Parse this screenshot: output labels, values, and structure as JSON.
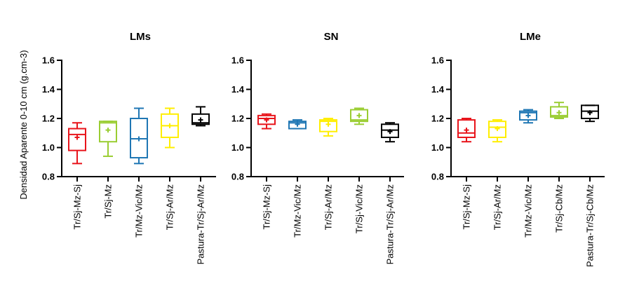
{
  "chart_data": {
    "type": "boxplot",
    "ylabel": "Densidad Aparente 0-10 cm  (g.cm-3)",
    "ylim": [
      0.8,
      1.6
    ],
    "yticks": [
      "0.8",
      "1.0",
      "1.2",
      "1.4",
      "1.6"
    ],
    "panels": [
      {
        "title": "LMs",
        "boxes": [
          {
            "label": "Tr/Sj-Mz-Sj",
            "color": "#e8141b",
            "min": 0.89,
            "q1": 0.98,
            "median": 1.09,
            "q3": 1.13,
            "max": 1.17,
            "mean": 1.07
          },
          {
            "label": "Tr/Sj-Mz",
            "color": "#9acd32",
            "min": 0.94,
            "q1": 1.04,
            "median": 1.17,
            "q3": 1.18,
            "max": 1.18,
            "mean": 1.12
          },
          {
            "label": "Tr/Mz-Vic/Mz",
            "color": "#1f77b4",
            "min": 0.89,
            "q1": 0.93,
            "median": 1.06,
            "q3": 1.2,
            "max": 1.27,
            "mean": 1.06
          },
          {
            "label": "Tr/Sj-Ar/Mz",
            "color": "#ffee00",
            "min": 1.0,
            "q1": 1.07,
            "median": 1.15,
            "q3": 1.23,
            "max": 1.27,
            "mean": 1.15
          },
          {
            "label": "Pastura-Tr/Sj-Ar/Mz",
            "color": "#000000",
            "min": 1.15,
            "q1": 1.16,
            "median": 1.17,
            "q3": 1.23,
            "max": 1.28,
            "mean": 1.19
          }
        ]
      },
      {
        "title": "SN",
        "boxes": [
          {
            "label": "Tr/Sj-Mz-Sj",
            "color": "#e8141b",
            "min": 1.13,
            "q1": 1.16,
            "median": 1.2,
            "q3": 1.22,
            "max": 1.23,
            "mean": 1.19
          },
          {
            "label": "Tr/Mz-Vic/Mz",
            "color": "#1f77b4",
            "min": 1.13,
            "q1": 1.13,
            "median": 1.17,
            "q3": 1.18,
            "max": 1.19,
            "mean": 1.16
          },
          {
            "label": "Tr/Sj-Ar/Mz",
            "color": "#ffee00",
            "min": 1.08,
            "q1": 1.11,
            "median": 1.18,
            "q3": 1.19,
            "max": 1.2,
            "mean": 1.16
          },
          {
            "label": "Tr/Sj-Vic/Mz",
            "color": "#9acd32",
            "min": 1.16,
            "q1": 1.18,
            "median": 1.19,
            "q3": 1.26,
            "max": 1.27,
            "mean": 1.22
          },
          {
            "label": "Pastura-Tr/Sj-Ar/Mz",
            "color": "#000000",
            "min": 1.04,
            "q1": 1.07,
            "median": 1.12,
            "q3": 1.16,
            "max": 1.17,
            "mean": 1.11
          }
        ]
      },
      {
        "title": "LMe",
        "boxes": [
          {
            "label": "Tr/Sj-Mz-Sj",
            "color": "#e8141b",
            "min": 1.04,
            "q1": 1.07,
            "median": 1.1,
            "q3": 1.19,
            "max": 1.2,
            "mean": 1.12
          },
          {
            "label": "Tr/Sj-Ar/Mz",
            "color": "#ffee00",
            "min": 1.04,
            "q1": 1.07,
            "median": 1.14,
            "q3": 1.18,
            "max": 1.19,
            "mean": 1.13
          },
          {
            "label": "Tr/Mz-Vic/Mz",
            "color": "#1f77b4",
            "min": 1.17,
            "q1": 1.19,
            "median": 1.24,
            "q3": 1.25,
            "max": 1.26,
            "mean": 1.22
          },
          {
            "label": "Tr/Sj-Cb/Mz",
            "color": "#9acd32",
            "min": 1.2,
            "q1": 1.21,
            "median": 1.22,
            "q3": 1.28,
            "max": 1.31,
            "mean": 1.24
          },
          {
            "label": "Pastura-Tr/Sj-Cb/Mz",
            "color": "#000000",
            "min": 1.18,
            "q1": 1.2,
            "median": 1.25,
            "q3": 1.29,
            "max": 1.29,
            "mean": 1.24
          }
        ]
      }
    ]
  }
}
